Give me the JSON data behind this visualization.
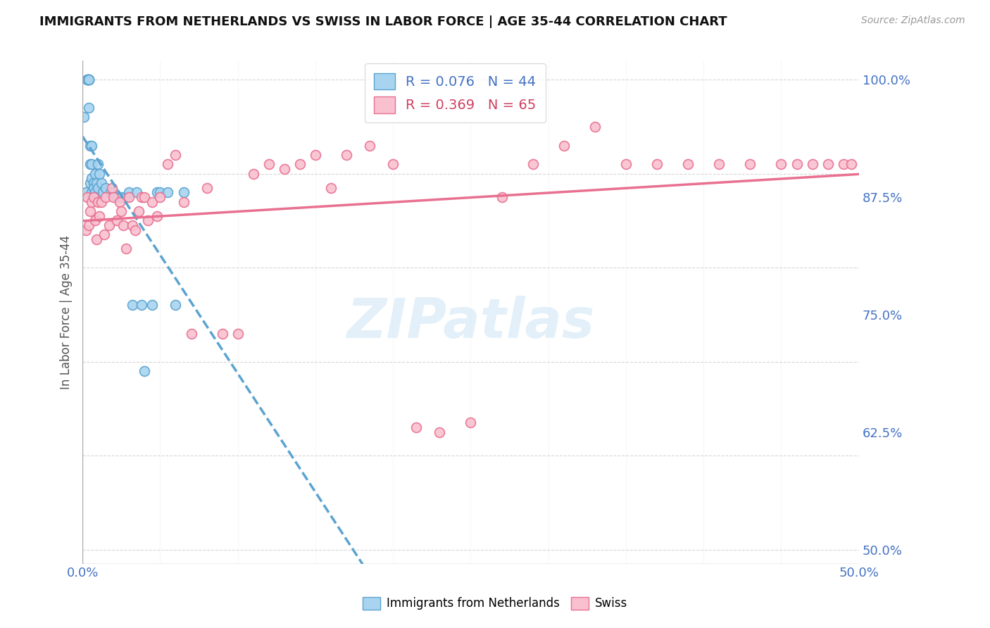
{
  "title": "IMMIGRANTS FROM NETHERLANDS VS SWISS IN LABOR FORCE | AGE 35-44 CORRELATION CHART",
  "source_text": "Source: ZipAtlas.com",
  "ylabel": "In Labor Force | Age 35-44",
  "xlim": [
    0.0,
    0.5
  ],
  "ylim": [
    0.485,
    1.02
  ],
  "yticks": [
    0.5,
    0.625,
    0.75,
    0.875,
    1.0
  ],
  "ytick_labels": [
    "50.0%",
    "62.5%",
    "75.0%",
    "87.5%",
    "100.0%"
  ],
  "xticks": [
    0.0,
    0.05,
    0.1,
    0.15,
    0.2,
    0.25,
    0.3,
    0.35,
    0.4,
    0.45,
    0.5
  ],
  "xtick_labels": [
    "0.0%",
    "",
    "",
    "",
    "",
    "",
    "",
    "",
    "",
    "",
    "50.0%"
  ],
  "blue_R": 0.076,
  "blue_N": 44,
  "pink_R": 0.369,
  "pink_N": 65,
  "blue_face": "#a8d4f0",
  "blue_edge": "#5ba3d0",
  "pink_face": "#f9c0d0",
  "pink_edge": "#e87090",
  "blue_line": "#5ba3d0",
  "pink_line": "#e87090",
  "watermark": "ZIPatlas",
  "blue_scatter_x": [
    0.001,
    0.002,
    0.003,
    0.003,
    0.003,
    0.004,
    0.004,
    0.004,
    0.004,
    0.004,
    0.005,
    0.005,
    0.005,
    0.006,
    0.006,
    0.006,
    0.006,
    0.007,
    0.007,
    0.008,
    0.008,
    0.009,
    0.01,
    0.01,
    0.011,
    0.012,
    0.013,
    0.015,
    0.018,
    0.02,
    0.022,
    0.025,
    0.028,
    0.03,
    0.032,
    0.035,
    0.038,
    0.04,
    0.045,
    0.048,
    0.05,
    0.055,
    0.06,
    0.065
  ],
  "blue_scatter_y": [
    0.96,
    0.88,
    1.0,
    1.0,
    1.0,
    1.0,
    1.0,
    1.0,
    1.0,
    0.97,
    0.93,
    0.91,
    0.89,
    0.93,
    0.91,
    0.895,
    0.88,
    0.89,
    0.885,
    0.9,
    0.88,
    0.89,
    0.91,
    0.885,
    0.9,
    0.89,
    0.88,
    0.885,
    0.88,
    0.88,
    0.875,
    0.875,
    0.875,
    0.88,
    0.76,
    0.88,
    0.76,
    0.69,
    0.76,
    0.88,
    0.88,
    0.88,
    0.76,
    0.88
  ],
  "pink_scatter_x": [
    0.002,
    0.003,
    0.004,
    0.005,
    0.006,
    0.007,
    0.008,
    0.009,
    0.01,
    0.011,
    0.012,
    0.014,
    0.015,
    0.017,
    0.019,
    0.02,
    0.022,
    0.024,
    0.025,
    0.026,
    0.028,
    0.03,
    0.032,
    0.034,
    0.036,
    0.038,
    0.04,
    0.042,
    0.045,
    0.048,
    0.05,
    0.055,
    0.06,
    0.065,
    0.07,
    0.08,
    0.09,
    0.1,
    0.11,
    0.12,
    0.13,
    0.14,
    0.15,
    0.16,
    0.17,
    0.185,
    0.2,
    0.215,
    0.23,
    0.25,
    0.27,
    0.29,
    0.31,
    0.33,
    0.35,
    0.37,
    0.39,
    0.41,
    0.43,
    0.45,
    0.46,
    0.47,
    0.48,
    0.49,
    0.495
  ],
  "pink_scatter_y": [
    0.84,
    0.875,
    0.845,
    0.86,
    0.87,
    0.875,
    0.85,
    0.83,
    0.87,
    0.855,
    0.87,
    0.835,
    0.875,
    0.845,
    0.885,
    0.875,
    0.85,
    0.87,
    0.86,
    0.845,
    0.82,
    0.875,
    0.845,
    0.84,
    0.86,
    0.875,
    0.875,
    0.85,
    0.87,
    0.855,
    0.875,
    0.91,
    0.92,
    0.87,
    0.73,
    0.885,
    0.73,
    0.73,
    0.9,
    0.91,
    0.905,
    0.91,
    0.92,
    0.885,
    0.92,
    0.93,
    0.91,
    0.63,
    0.625,
    0.635,
    0.875,
    0.91,
    0.93,
    0.95,
    0.91,
    0.91,
    0.91,
    0.91,
    0.91,
    0.91,
    0.91,
    0.91,
    0.91,
    0.91,
    0.91
  ]
}
